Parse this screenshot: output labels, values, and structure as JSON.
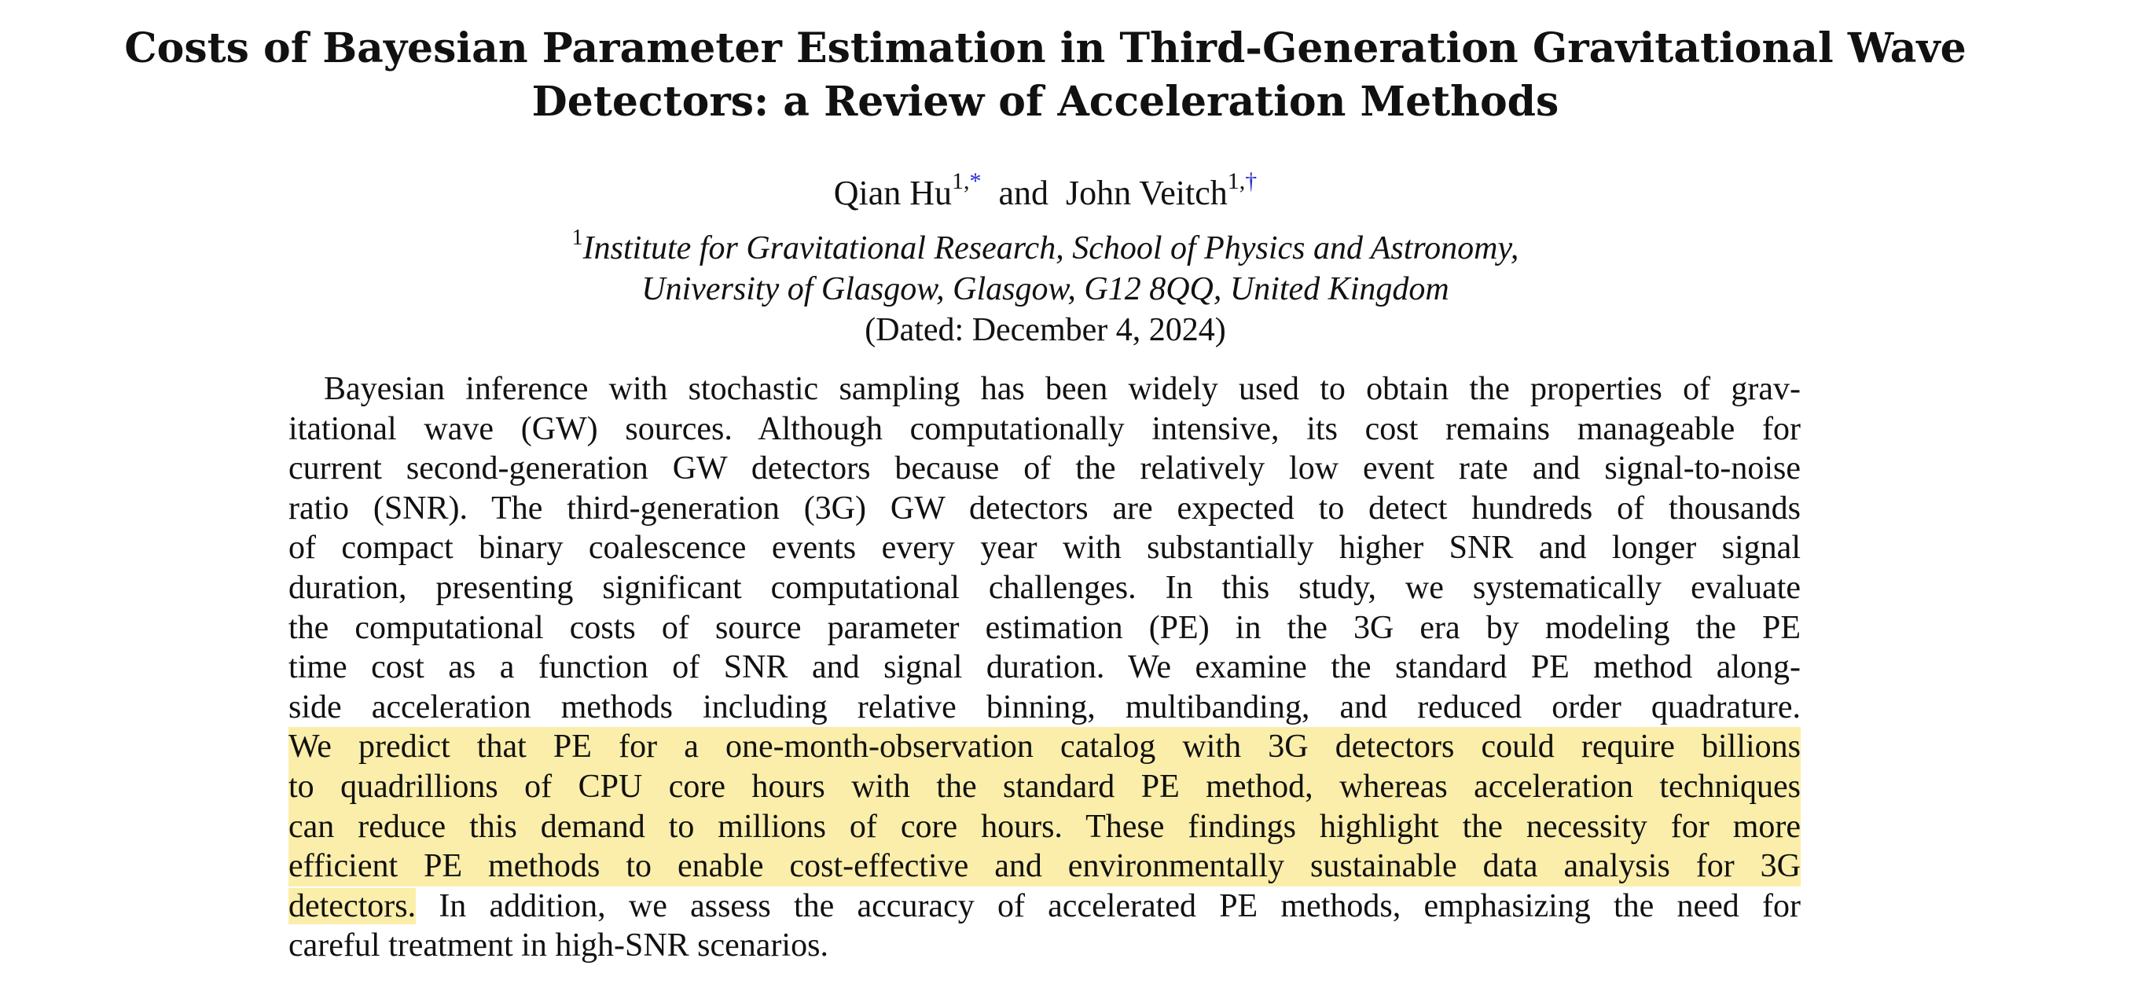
{
  "paper": {
    "title_lines": [
      "Costs of Bayesian Parameter Estimation in Third-Generation Gravitational Wave",
      "Detectors: a Review of Acceleration Methods"
    ],
    "authors": {
      "author1": "Qian Hu",
      "author1_sup": "1,",
      "author1_mark": "*",
      "conjunction": "and",
      "author2": "John Veitch",
      "author2_sup": "1,",
      "author2_mark": "†"
    },
    "affiliation": {
      "sup": "1",
      "line1": "Institute for Gravitational Research, School of Physics and Astronomy,",
      "line2": "University of Glasgow, Glasgow, G12 8QQ, United Kingdom",
      "dated": "(Dated: December 4, 2024)"
    },
    "abstract": {
      "highlight_color": "#fbeeaa",
      "lines": [
        "Bayesian inference with stochastic sampling has been widely used to obtain the properties of grav-",
        "itational wave (GW) sources. Although computationally intensive, its cost remains manageable for",
        "current second-generation GW detectors because of the relatively low event rate and signal-to-noise",
        "ratio (SNR). The third-generation (3G) GW detectors are expected to detect hundreds of thousands",
        "of compact binary coalescence events every year with substantially higher SNR and longer signal",
        "duration, presenting significant computational challenges. In this study, we systematically evaluate",
        "the computational costs of source parameter estimation (PE) in the 3G era by modeling the PE",
        "time cost as a function of SNR and signal duration.  We examine the standard PE method along-",
        "side acceleration methods including relative binning, multibanding, and reduced order quadrature.",
        "We predict that PE for a one-month-observation catalog with 3G detectors could require billions",
        "to quadrillions of CPU core hours with the standard PE method, whereas acceleration techniques",
        "can reduce this demand to millions of core hours.  These findings highlight the necessity for more",
        "efficient PE methods to enable cost-effective and environmentally sustainable data analysis for 3G"
      ],
      "line14_highlight": "detectors.",
      "line14_rest": " In addition, we assess the accuracy of accelerated PE methods, emphasizing the need for",
      "line15": "careful treatment in high-SNR scenarios."
    }
  }
}
